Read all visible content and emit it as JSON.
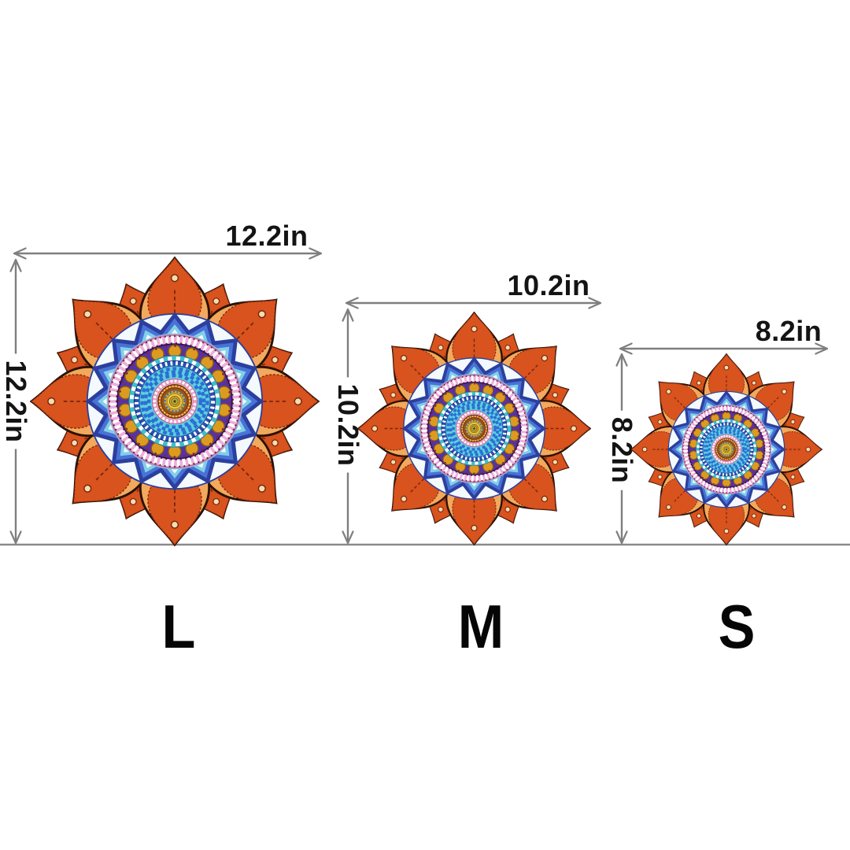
{
  "variants": [
    {
      "size_code": "L",
      "width": "12.2in",
      "height": "12.2in"
    },
    {
      "size_code": "M",
      "width": "10.2in",
      "height": "10.2in"
    },
    {
      "size_code": "S",
      "width": "8.2in",
      "height": "8.2in"
    }
  ],
  "colors": {
    "dimension_line": "#7f7f7f",
    "baseline": "#8a8a8a",
    "dimension_text": "#141414",
    "size_letter": "#060606",
    "mandala": {
      "outline": "#2a1205",
      "petal_edge": "#f2a95c",
      "petal_fill": "#d8531d",
      "petal_detail": "#7a2410",
      "petal_eye": "#f2dfae",
      "scallop_fill": "#8fd2e0",
      "scallop_stroke": "#1f6f8a",
      "zig_bg": "#f3f9fc",
      "zig_navy": "#2b3f9e",
      "zig_blue": "#4a72d6",
      "zig_aqua": "#7fd0e8",
      "ring_white": "#ffffff",
      "pink_band": "#edaede",
      "pink_stroke": "#b06aa6",
      "pink_dot": "#7a2a3a",
      "purple_band": "#5532a6",
      "purple_stroke": "#2a1060",
      "gold": "#dc9b20",
      "gold_stroke": "#8a5a10",
      "check_teal": "#3fbfc9",
      "check_stroke": "#2a7f96",
      "blue_band": "#2b4fb8",
      "blue_band_stroke": "#1a2f80",
      "scale_fill": "#5fcede",
      "scale_stroke": "#2b6fd4",
      "scale_edge": "#1f5fa0",
      "spike_pink": "#ef9fc0",
      "spike_fill": "#f7c8dd",
      "spike_edge": "#d87aa8",
      "center_outer": "#c46a24",
      "center_outer_edge": "#6a3410",
      "center_brown": "#a0521f",
      "center_gold": "#d9a52f",
      "center_gold_edge": "#8a5a10",
      "center_gold_dots": "#f0cf6a",
      "center_blue": "#2b6fd4",
      "center_yellow": "#e8ca4a",
      "center_yellow_edge": "#a8861a",
      "center_olive": "#b8b03a",
      "center_olive_edge": "#6a6a1a",
      "center_dark": "#4a3a10"
    }
  }
}
